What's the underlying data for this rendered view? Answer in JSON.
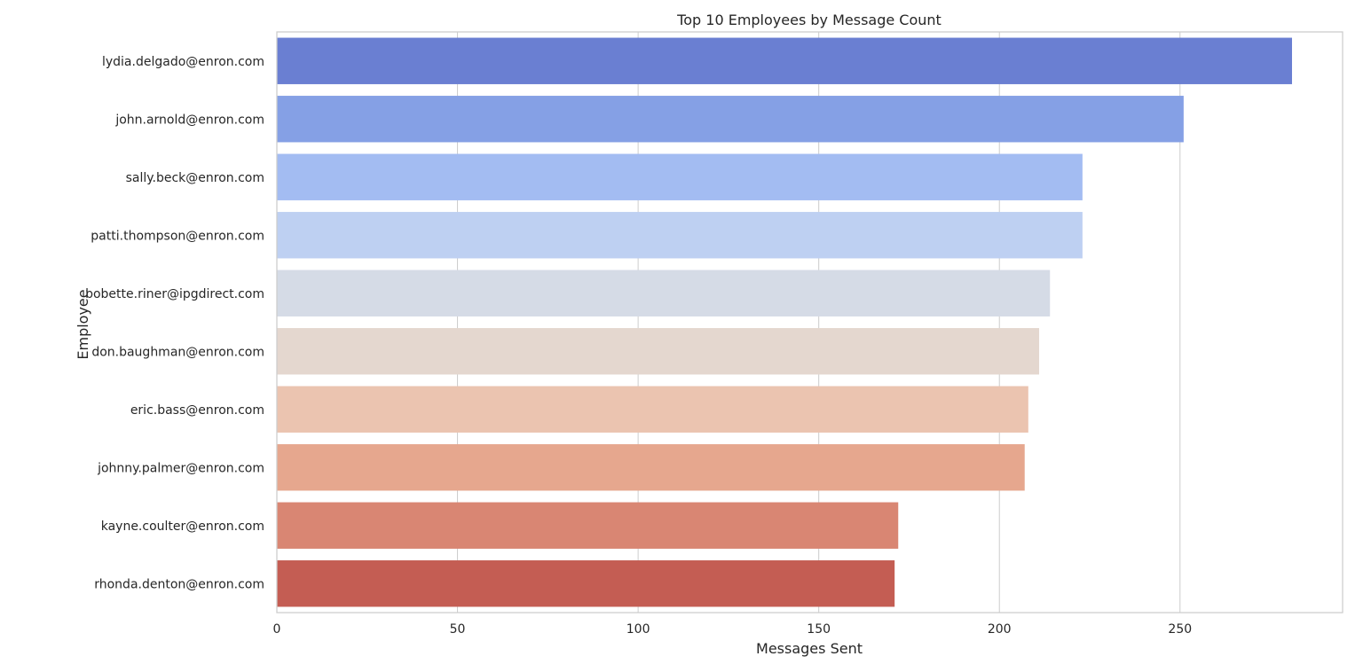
{
  "chart_data": {
    "type": "bar",
    "orientation": "horizontal",
    "title": "Top 10 Employees by Message Count",
    "xlabel": "Messages Sent",
    "ylabel": "Employee",
    "categories": [
      "lydia.delgado@enron.com",
      "john.arnold@enron.com",
      "sally.beck@enron.com",
      "patti.thompson@enron.com",
      "bobette.riner@ipgdirect.com",
      "don.baughman@enron.com",
      "eric.bass@enron.com",
      "johnny.palmer@enron.com",
      "kayne.coulter@enron.com",
      "rhonda.denton@enron.com"
    ],
    "values": [
      281,
      251,
      223,
      223,
      214,
      211,
      208,
      207,
      172,
      171
    ],
    "colors": [
      "#6a7fd2",
      "#85a0e5",
      "#a3bcf2",
      "#bed0f2",
      "#d5dbe6",
      "#e4d7cf",
      "#ebc4b0",
      "#e6a78e",
      "#d98673",
      "#c45d53"
    ],
    "xlim": [
      0,
      295
    ],
    "xticks": [
      0,
      50,
      100,
      150,
      200,
      250
    ],
    "grid": true,
    "legend": "none"
  }
}
